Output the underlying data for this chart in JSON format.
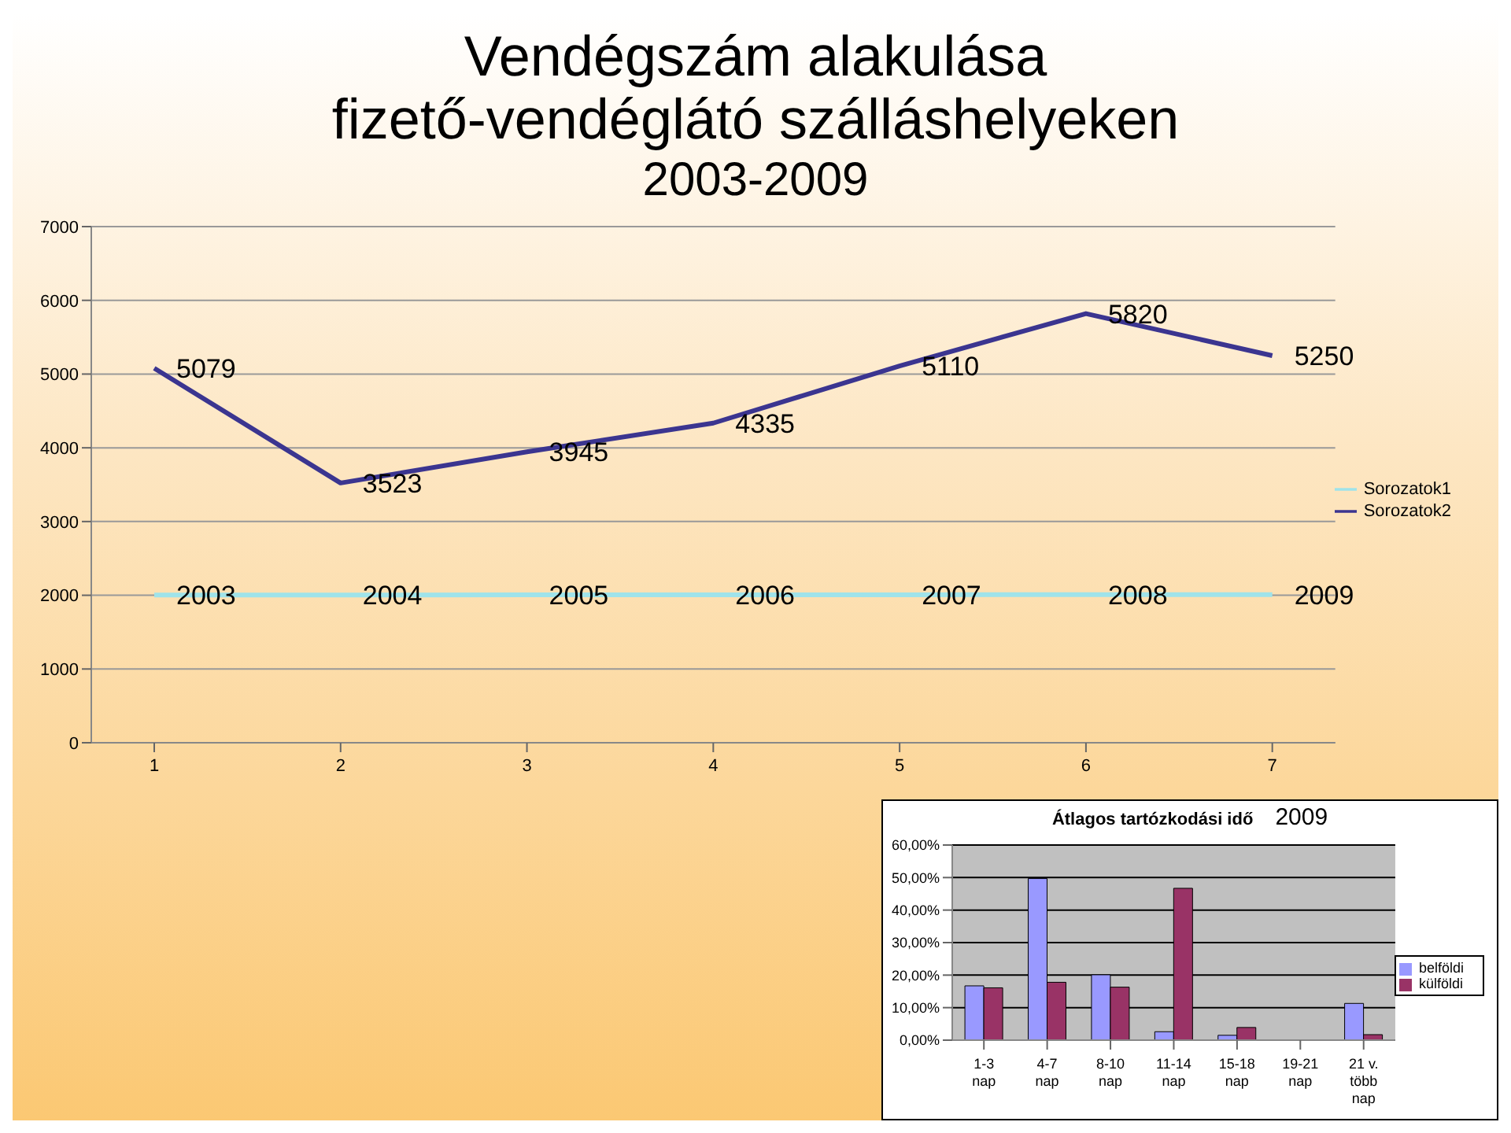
{
  "chart_data": [
    {
      "type": "line",
      "title": "Vendégszám alakulása\nfizető-vendéglátó szálláshelyeken",
      "subtitle": "2003-2009",
      "categories": [
        "1",
        "2",
        "3",
        "4",
        "5",
        "6",
        "7"
      ],
      "ylim": [
        0,
        7000
      ],
      "yticks": [
        0,
        1000,
        2000,
        3000,
        4000,
        5000,
        6000,
        7000
      ],
      "grid": "y",
      "legend": "right",
      "data_labels": true,
      "marker": "none",
      "series": [
        {
          "name": "Sorozatok1",
          "color": "#9fe3ea",
          "values": [
            2003,
            2004,
            2005,
            2006,
            2007,
            2008,
            2009
          ]
        },
        {
          "name": "Sorozatok2",
          "color": "#3b3590",
          "values": [
            5079,
            3523,
            3945,
            4335,
            5110,
            5820,
            5250
          ]
        }
      ]
    },
    {
      "type": "bar",
      "title": "Átlagos tartózkodási idő",
      "subtitle": "2009",
      "categories": [
        "1-3 nap",
        "4-7 nap",
        "8-10 nap",
        "11-14 nap",
        "15-18 nap",
        "19-21 nap",
        "21 v. több nap"
      ],
      "ylim": [
        0,
        60
      ],
      "yticks": [
        {
          "value": 0,
          "label": "0,00%"
        },
        {
          "value": 10,
          "label": "10,00%"
        },
        {
          "value": 20,
          "label": "20,00%"
        },
        {
          "value": 30,
          "label": "30,00%"
        },
        {
          "value": 40,
          "label": "40,00%"
        },
        {
          "value": 50,
          "label": "50,00%"
        },
        {
          "value": 60,
          "label": "60,00%"
        }
      ],
      "grid": "y",
      "legend": "right",
      "series": [
        {
          "name": "belföldi",
          "color": "#9999ff",
          "values": [
            16.7,
            49.7,
            20.1,
            2.6,
            1.5,
            0,
            11.3
          ]
        },
        {
          "name": "külföldi",
          "color": "#993366",
          "values": [
            16.1,
            17.8,
            16.3,
            46.7,
            3.9,
            0,
            1.7
          ]
        }
      ]
    }
  ]
}
